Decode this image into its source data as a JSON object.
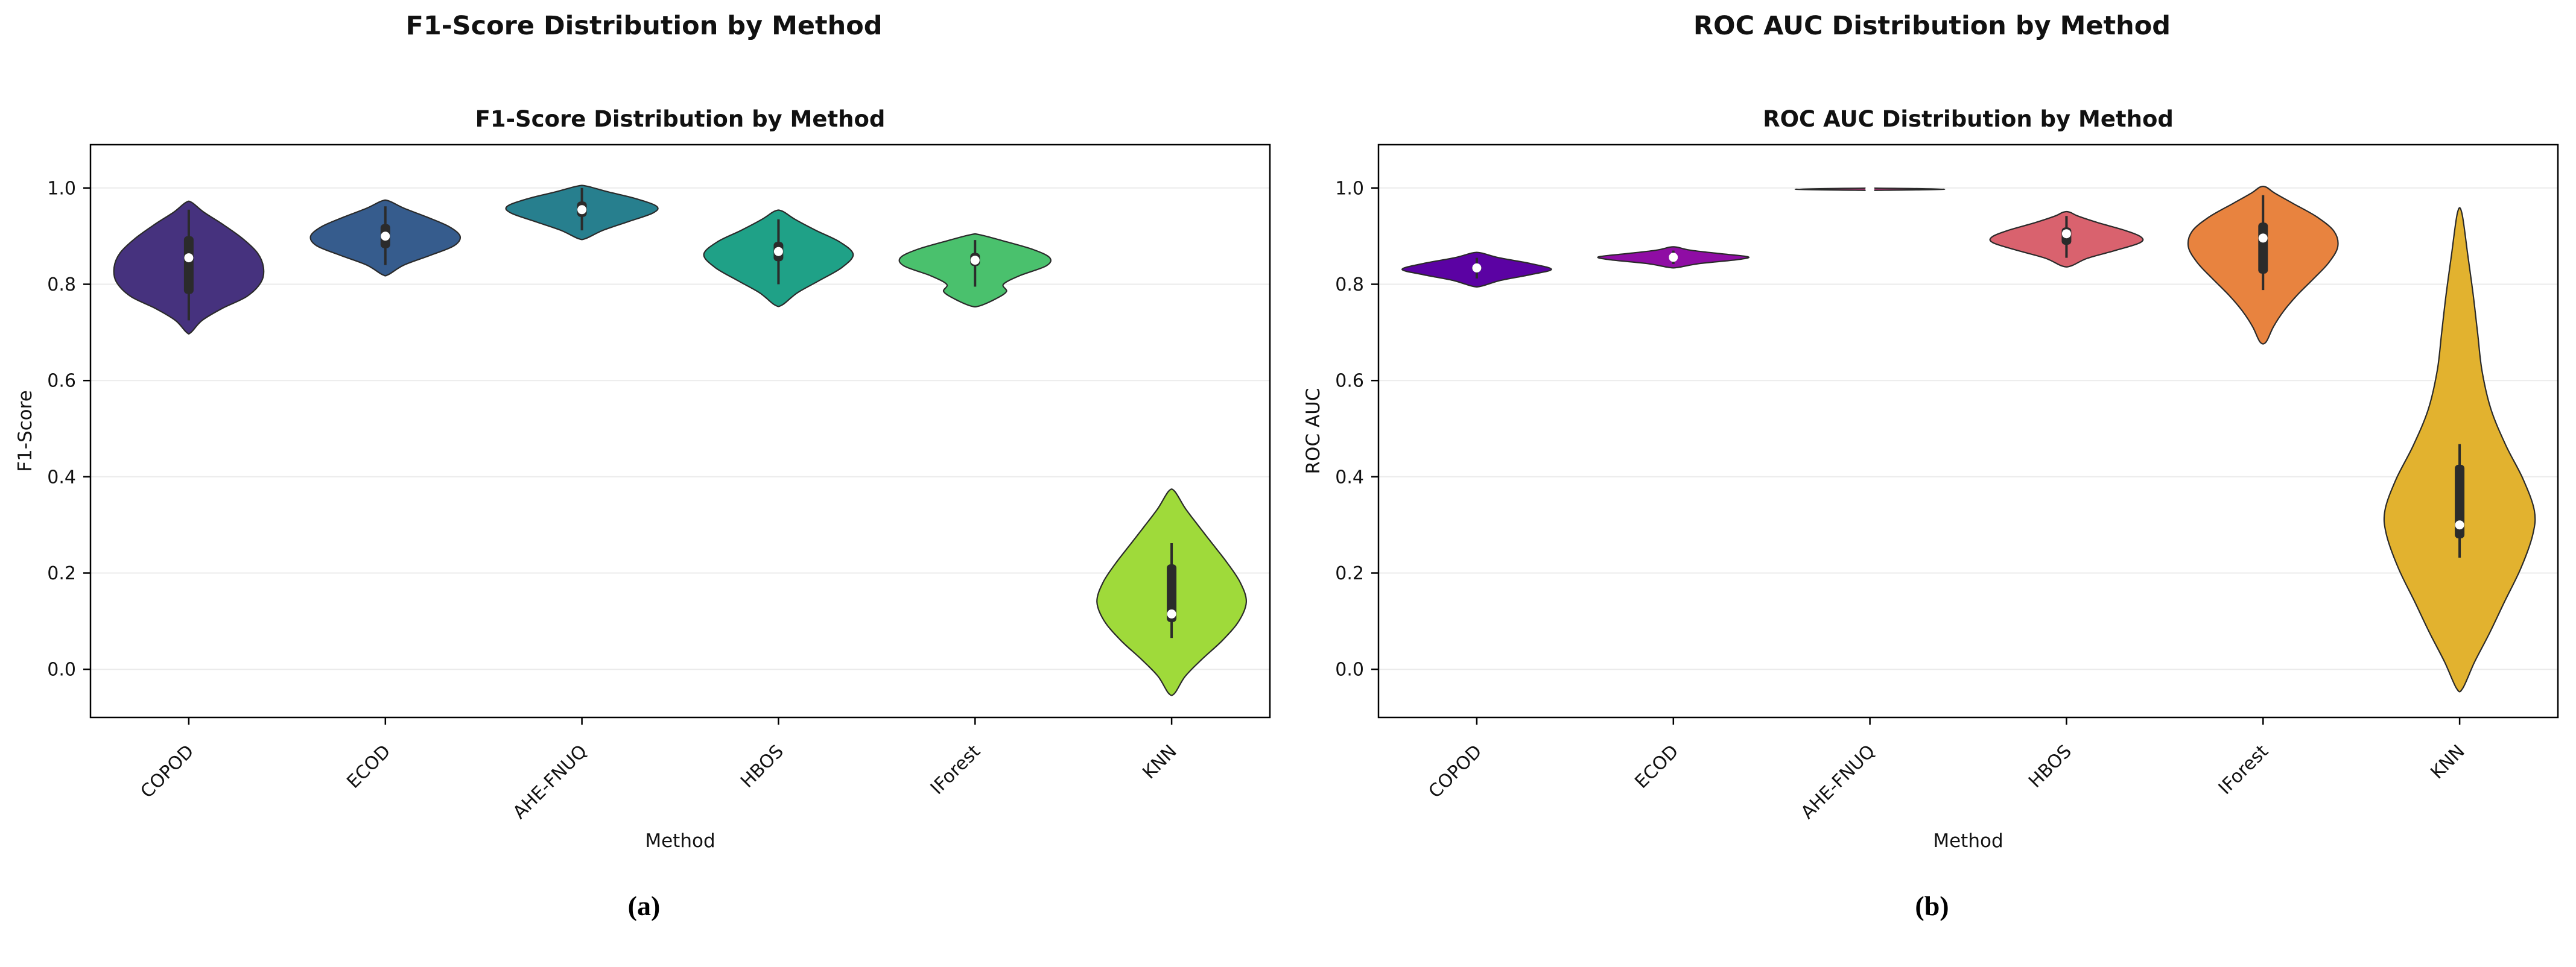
{
  "page": {
    "background": "#ffffff"
  },
  "panels": [
    {
      "outer_title": "F1-Score Distribution by Method",
      "caption": "(a)"
    },
    {
      "outer_title": "ROC AUC Distribution by Method",
      "caption": "(b)"
    }
  ],
  "chart_data": [
    {
      "type": "violin",
      "title": "F1-Score Distribution by Method",
      "xlabel": "Method",
      "ylabel": "F1-Score",
      "ylim": [
        -0.1,
        1.09
      ],
      "yticks": [
        0.0,
        0.2,
        0.4,
        0.6,
        0.8,
        1.0
      ],
      "grid": true,
      "legend": "none",
      "categories": [
        "COPOD",
        "ECOD",
        "AHE-FNUQ",
        "HBOS",
        "IForest",
        "KNN"
      ],
      "violins": [
        {
          "method": "COPOD",
          "color": "#46327e",
          "min": 0.7,
          "max": 0.97,
          "q1": 0.78,
          "median": 0.855,
          "q3": 0.9,
          "whisker_low": 0.725,
          "whisker_high": 0.955,
          "profile": [
            [
              0.7,
              0.03
            ],
            [
              0.725,
              0.18
            ],
            [
              0.75,
              0.45
            ],
            [
              0.775,
              0.78
            ],
            [
              0.805,
              0.97
            ],
            [
              0.835,
              1.0
            ],
            [
              0.865,
              0.92
            ],
            [
              0.895,
              0.72
            ],
            [
              0.925,
              0.45
            ],
            [
              0.95,
              0.2
            ],
            [
              0.97,
              0.04
            ]
          ]
        },
        {
          "method": "ECOD",
          "color": "#365c8d",
          "min": 0.82,
          "max": 0.973,
          "q1": 0.875,
          "median": 0.9,
          "q3": 0.925,
          "whisker_low": 0.84,
          "whisker_high": 0.962,
          "profile": [
            [
              0.82,
              0.04
            ],
            [
              0.84,
              0.25
            ],
            [
              0.86,
              0.6
            ],
            [
              0.88,
              0.92
            ],
            [
              0.9,
              1.0
            ],
            [
              0.92,
              0.85
            ],
            [
              0.94,
              0.55
            ],
            [
              0.958,
              0.25
            ],
            [
              0.973,
              0.05
            ]
          ]
        },
        {
          "method": "AHE-FNUQ",
          "color": "#277f8e",
          "min": 0.895,
          "max": 1.004,
          "q1": 0.94,
          "median": 0.955,
          "q3": 0.972,
          "whisker_low": 0.912,
          "whisker_high": 1.0,
          "profile": [
            [
              0.895,
              0.05
            ],
            [
              0.912,
              0.28
            ],
            [
              0.93,
              0.62
            ],
            [
              0.948,
              0.95
            ],
            [
              0.962,
              1.0
            ],
            [
              0.978,
              0.72
            ],
            [
              0.992,
              0.35
            ],
            [
              1.004,
              0.06
            ]
          ]
        },
        {
          "method": "HBOS",
          "color": "#1fa187",
          "min": 0.757,
          "max": 0.952,
          "q1": 0.848,
          "median": 0.868,
          "q3": 0.888,
          "whisker_low": 0.8,
          "whisker_high": 0.935,
          "profile": [
            [
              0.757,
              0.05
            ],
            [
              0.782,
              0.25
            ],
            [
              0.808,
              0.55
            ],
            [
              0.835,
              0.85
            ],
            [
              0.862,
              1.0
            ],
            [
              0.888,
              0.82
            ],
            [
              0.912,
              0.5
            ],
            [
              0.935,
              0.22
            ],
            [
              0.952,
              0.05
            ]
          ]
        },
        {
          "method": "IForest",
          "color": "#4ac16d",
          "min": 0.755,
          "max": 0.903,
          "q1": 0.838,
          "median": 0.85,
          "q3": 0.865,
          "whisker_low": 0.795,
          "whisker_high": 0.892,
          "profile": [
            [
              0.755,
              0.06
            ],
            [
              0.77,
              0.28
            ],
            [
              0.785,
              0.42
            ],
            [
              0.8,
              0.38
            ],
            [
              0.818,
              0.6
            ],
            [
              0.838,
              0.95
            ],
            [
              0.855,
              1.0
            ],
            [
              0.872,
              0.78
            ],
            [
              0.89,
              0.38
            ],
            [
              0.903,
              0.06
            ]
          ]
        },
        {
          "method": "KNN",
          "color": "#9fda3a",
          "min": -0.05,
          "max": 0.37,
          "q1": 0.098,
          "median": 0.115,
          "q3": 0.218,
          "whisker_low": 0.065,
          "whisker_high": 0.262,
          "profile": [
            [
              -0.05,
              0.04
            ],
            [
              -0.015,
              0.18
            ],
            [
              0.02,
              0.4
            ],
            [
              0.06,
              0.68
            ],
            [
              0.1,
              0.9
            ],
            [
              0.14,
              1.0
            ],
            [
              0.18,
              0.92
            ],
            [
              0.22,
              0.75
            ],
            [
              0.26,
              0.55
            ],
            [
              0.3,
              0.35
            ],
            [
              0.335,
              0.18
            ],
            [
              0.37,
              0.04
            ]
          ]
        }
      ]
    },
    {
      "type": "violin",
      "title": "ROC AUC Distribution by Method",
      "xlabel": "Method",
      "ylabel": "ROC AUC",
      "ylim": [
        -0.1,
        1.09
      ],
      "yticks": [
        0.0,
        0.2,
        0.4,
        0.6,
        0.8,
        1.0
      ],
      "grid": true,
      "legend": "none",
      "categories": [
        "COPOD",
        "ECOD",
        "AHE-FNUQ",
        "HBOS",
        "IForest",
        "KNN"
      ],
      "violins": [
        {
          "method": "COPOD",
          "color": "#5b02a3",
          "min": 0.796,
          "max": 0.865,
          "q1": 0.826,
          "median": 0.834,
          "q3": 0.841,
          "whisker_low": 0.812,
          "whisker_high": 0.855,
          "profile": [
            [
              0.796,
              0.06
            ],
            [
              0.808,
              0.32
            ],
            [
              0.82,
              0.72
            ],
            [
              0.831,
              1.0
            ],
            [
              0.843,
              0.72
            ],
            [
              0.855,
              0.3
            ],
            [
              0.865,
              0.06
            ]
          ]
        },
        {
          "method": "ECOD",
          "color": "#8f0da4",
          "min": 0.835,
          "max": 0.877,
          "q1": 0.851,
          "median": 0.856,
          "q3": 0.861,
          "whisker_low": 0.842,
          "whisker_high": 0.87,
          "profile": [
            [
              0.835,
              0.06
            ],
            [
              0.843,
              0.35
            ],
            [
              0.851,
              0.85
            ],
            [
              0.857,
              1.0
            ],
            [
              0.864,
              0.6
            ],
            [
              0.871,
              0.22
            ],
            [
              0.877,
              0.05
            ]
          ]
        },
        {
          "method": "AHE-FNUQ",
          "color": "#b5367a",
          "min": 0.9952,
          "max": 0.9996,
          "q1": 0.997,
          "median": 0.9978,
          "q3": 0.9985,
          "whisker_low": 0.996,
          "whisker_high": 0.9993,
          "profile": [
            [
              0.9952,
              0.12
            ],
            [
              0.9975,
              1.0
            ],
            [
              0.9996,
              0.12
            ]
          ]
        },
        {
          "method": "HBOS",
          "color": "#d9626e",
          "min": 0.838,
          "max": 0.95,
          "q1": 0.882,
          "median": 0.905,
          "q3": 0.918,
          "whisker_low": 0.855,
          "whisker_high": 0.942,
          "profile": [
            [
              0.838,
              0.06
            ],
            [
              0.854,
              0.28
            ],
            [
              0.87,
              0.65
            ],
            [
              0.886,
              0.98
            ],
            [
              0.898,
              1.0
            ],
            [
              0.912,
              0.78
            ],
            [
              0.928,
              0.42
            ],
            [
              0.942,
              0.15
            ],
            [
              0.95,
              0.04
            ]
          ]
        },
        {
          "method": "IForest",
          "color": "#e8833f",
          "min": 0.68,
          "max": 1.002,
          "q1": 0.822,
          "median": 0.896,
          "q3": 0.928,
          "whisker_low": 0.788,
          "whisker_high": 0.985,
          "profile": [
            [
              0.68,
              0.04
            ],
            [
              0.712,
              0.14
            ],
            [
              0.745,
              0.28
            ],
            [
              0.778,
              0.46
            ],
            [
              0.812,
              0.68
            ],
            [
              0.845,
              0.88
            ],
            [
              0.878,
              1.0
            ],
            [
              0.91,
              0.95
            ],
            [
              0.94,
              0.72
            ],
            [
              0.968,
              0.4
            ],
            [
              0.99,
              0.15
            ],
            [
              1.002,
              0.04
            ]
          ]
        },
        {
          "method": "KNN",
          "color": "#e2b22f",
          "min": -0.04,
          "max": 0.948,
          "q1": 0.272,
          "median": 0.3,
          "q3": 0.425,
          "whisker_low": 0.232,
          "whisker_high": 0.468,
          "profile": [
            [
              -0.04,
              0.04
            ],
            [
              0.015,
              0.2
            ],
            [
              0.075,
              0.4
            ],
            [
              0.14,
              0.6
            ],
            [
              0.21,
              0.82
            ],
            [
              0.28,
              0.98
            ],
            [
              0.33,
              1.0
            ],
            [
              0.395,
              0.85
            ],
            [
              0.465,
              0.62
            ],
            [
              0.54,
              0.42
            ],
            [
              0.62,
              0.3
            ],
            [
              0.7,
              0.24
            ],
            [
              0.78,
              0.18
            ],
            [
              0.86,
              0.11
            ],
            [
              0.948,
              0.03
            ]
          ]
        }
      ]
    }
  ]
}
